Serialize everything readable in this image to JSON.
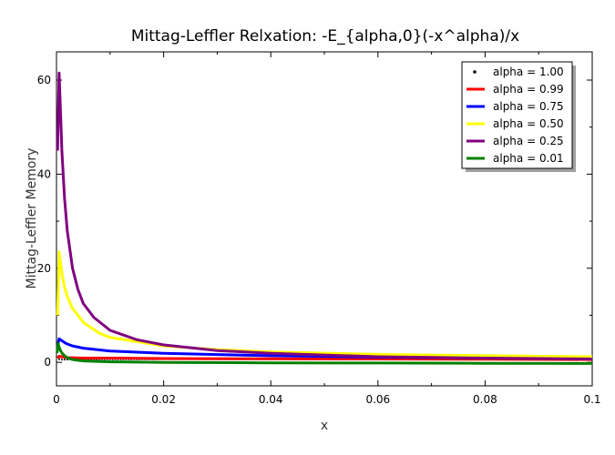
{
  "chart_data": {
    "type": "line",
    "title": "Mittag-Leffler Relxation: -E_{alpha,0}(-x^alpha)/x",
    "xlabel": "x",
    "ylabel": "Mittag-Leffler Memory",
    "xlim": [
      0,
      0.1
    ],
    "ylim": [
      -5,
      66
    ],
    "xticks": [
      0,
      0.02,
      0.04,
      0.06,
      0.08,
      0.1
    ],
    "xtick_labels": [
      "0",
      "0.02",
      "0.04",
      "0.06",
      "0.08",
      "0.1"
    ],
    "yticks": [
      0,
      20,
      40,
      60
    ],
    "ytick_labels": [
      "0",
      "20",
      "40",
      "60"
    ],
    "grid": false,
    "legend_position": "top-right",
    "series": [
      {
        "name": "alpha = 1.00",
        "color": "#000000",
        "style": "dots",
        "x": [
          0.0005,
          0.001,
          0.002,
          0.005,
          0.01,
          0.02,
          0.04,
          0.06,
          0.08,
          0.1
        ],
        "y": [
          0.65,
          0.6,
          0.6,
          0.62,
          0.63,
          0.64,
          0.66,
          0.68,
          0.7,
          0.72
        ]
      },
      {
        "name": "alpha = 0.99",
        "color": "#ff0000",
        "style": "line",
        "x": [
          0.0002,
          0.0005,
          0.001,
          0.002,
          0.005,
          0.01,
          0.02,
          0.04,
          0.06,
          0.08,
          0.1
        ],
        "y": [
          0.9,
          1.3,
          1.2,
          1.0,
          0.9,
          0.9,
          0.8,
          0.75,
          0.7,
          0.65,
          0.6
        ]
      },
      {
        "name": "alpha = 0.75",
        "color": "#0000ff",
        "style": "line",
        "x": [
          0.0002,
          0.0005,
          0.001,
          0.0015,
          0.002,
          0.003,
          0.005,
          0.01,
          0.02,
          0.04,
          0.06,
          0.08,
          0.1
        ],
        "y": [
          3.5,
          5.0,
          4.6,
          4.2,
          3.9,
          3.5,
          3.0,
          2.4,
          1.9,
          1.4,
          1.1,
          0.9,
          0.8
        ]
      },
      {
        "name": "alpha = 0.50",
        "color": "#ffff00",
        "style": "line",
        "x": [
          0.0002,
          0.0005,
          0.001,
          0.0015,
          0.002,
          0.003,
          0.005,
          0.008,
          0.01,
          0.02,
          0.03,
          0.04,
          0.06,
          0.08,
          0.1
        ],
        "y": [
          10,
          23.5,
          19,
          16,
          14,
          11.5,
          8.5,
          6.2,
          5.3,
          3.5,
          2.7,
          2.2,
          1.7,
          1.4,
          1.2
        ]
      },
      {
        "name": "alpha = 0.25",
        "color": "#800080",
        "style": "line",
        "x": [
          0.0002,
          0.0005,
          0.0007,
          0.001,
          0.0015,
          0.002,
          0.003,
          0.004,
          0.005,
          0.007,
          0.01,
          0.015,
          0.02,
          0.03,
          0.04,
          0.06,
          0.08,
          0.1
        ],
        "y": [
          45,
          61.5,
          55,
          45,
          35,
          28,
          20,
          15.5,
          12.5,
          9.5,
          6.8,
          4.8,
          3.7,
          2.5,
          1.9,
          1.2,
          0.9,
          0.7
        ]
      },
      {
        "name": "alpha = 0.01",
        "color": "#008000",
        "style": "line",
        "x": [
          0.0001,
          0.0003,
          0.0005,
          0.0007,
          0.001,
          0.0015,
          0.002,
          0.003,
          0.005,
          0.01,
          0.02,
          0.04,
          0.06,
          0.08,
          0.1
        ],
        "y": [
          2.0,
          4.0,
          3.2,
          2.6,
          2.0,
          1.4,
          1.0,
          0.6,
          0.3,
          0.1,
          0.0,
          -0.1,
          -0.15,
          -0.2,
          -0.25
        ]
      }
    ]
  }
}
